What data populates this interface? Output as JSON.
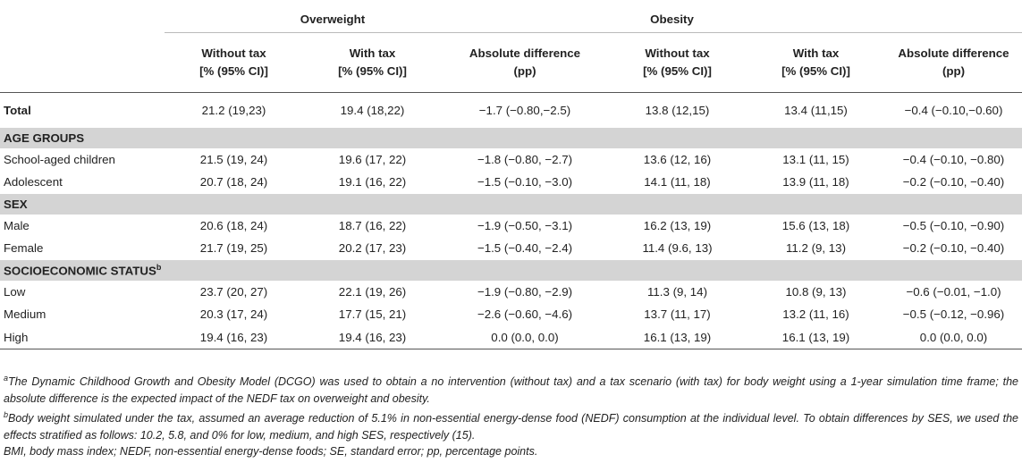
{
  "groups": {
    "overweight": "Overweight",
    "obesity": "Obesity"
  },
  "subheaders": {
    "without_tax_l1": "Without tax",
    "without_tax_l2": "[% (95% CI)]",
    "with_tax_l1": "With tax",
    "with_tax_l2": "[% (95% CI)]",
    "abs_diff_l1": "Absolute difference",
    "abs_diff_l2": "(pp)"
  },
  "total": {
    "label": "Total",
    "cells": [
      "21.2 (19,23)",
      "19.4 (18,22)",
      "−1.7 (−0.80,−2.5)",
      "13.8 (12,15)",
      "13.4 (11,15)",
      "−0.4 (−0.10,−0.60)"
    ]
  },
  "sections": {
    "age": "AGE GROUPS",
    "sex": "SEX",
    "ses": "SOCIOECONOMIC STATUS",
    "ses_sup": "b"
  },
  "rows": {
    "school": {
      "label": "School-aged children",
      "cells": [
        "21.5 (19, 24)",
        "19.6 (17, 22)",
        "−1.8 (−0.80, −2.7)",
        "13.6 (12, 16)",
        "13.1 (11, 15)",
        "−0.4 (−0.10, −0.80)"
      ]
    },
    "adolescent": {
      "label": "Adolescent",
      "cells": [
        "20.7 (18, 24)",
        "19.1 (16, 22)",
        "−1.5 (−0.10, −3.0)",
        "14.1 (11, 18)",
        "13.9 (11, 18)",
        "−0.2 (−0.10, −0.40)"
      ]
    },
    "male": {
      "label": "Male",
      "cells": [
        "20.6 (18, 24)",
        "18.7 (16, 22)",
        "−1.9 (−0.50, −3.1)",
        "16.2 (13, 19)",
        "15.6 (13, 18)",
        "−0.5 (−0.10, −0.90)"
      ]
    },
    "female": {
      "label": "Female",
      "cells": [
        "21.7 (19, 25)",
        "20.2 (17, 23)",
        "−1.5 (−0.40, −2.4)",
        "11.4 (9.6, 13)",
        "11.2 (9, 13)",
        "−0.2 (−0.10, −0.40)"
      ]
    },
    "low": {
      "label": "Low",
      "cells": [
        "23.7 (20, 27)",
        "22.1 (19, 26)",
        "−1.9 (−0.80, −2.9)",
        "11.3 (9, 14)",
        "10.8 (9, 13)",
        "−0.6 (−0.01, −1.0)"
      ]
    },
    "medium": {
      "label": "Medium",
      "cells": [
        "20.3 (17, 24)",
        "17.7 (15, 21)",
        "−2.6 (−0.60, −4.6)",
        "13.7 (11, 17)",
        "13.2 (11, 16)",
        "−0.5 (−0.12, −0.96)"
      ]
    },
    "high": {
      "label": "High",
      "cells": [
        "19.4 (16, 23)",
        "19.4 (16, 23)",
        "0.0 (0.0, 0.0)",
        "16.1 (13, 19)",
        "16.1 (13, 19)",
        "0.0 (0.0, 0.0)"
      ]
    }
  },
  "notes": {
    "a_sup": "a",
    "a": "The Dynamic Childhood Growth and Obesity Model (DCGO) was used to obtain a no intervention (without tax) and a tax scenario (with tax) for body weight using a 1-year simulation time frame; the absolute difference is the expected impact of the NEDF tax on overweight and obesity.",
    "b_sup": "b",
    "b": "Body weight simulated under the tax, assumed an average reduction of 5.1% in non-essential energy-dense food (NEDF) consumption at the individual level. To obtain differences by SES, we used the effects stratified as follows: 10.2, 5.8, and 0% for low, medium, and high SES, respectively (15).",
    "abbr": "BMI, body mass index; NEDF, non-essential energy-dense foods; SE, standard error; pp, percentage points."
  }
}
